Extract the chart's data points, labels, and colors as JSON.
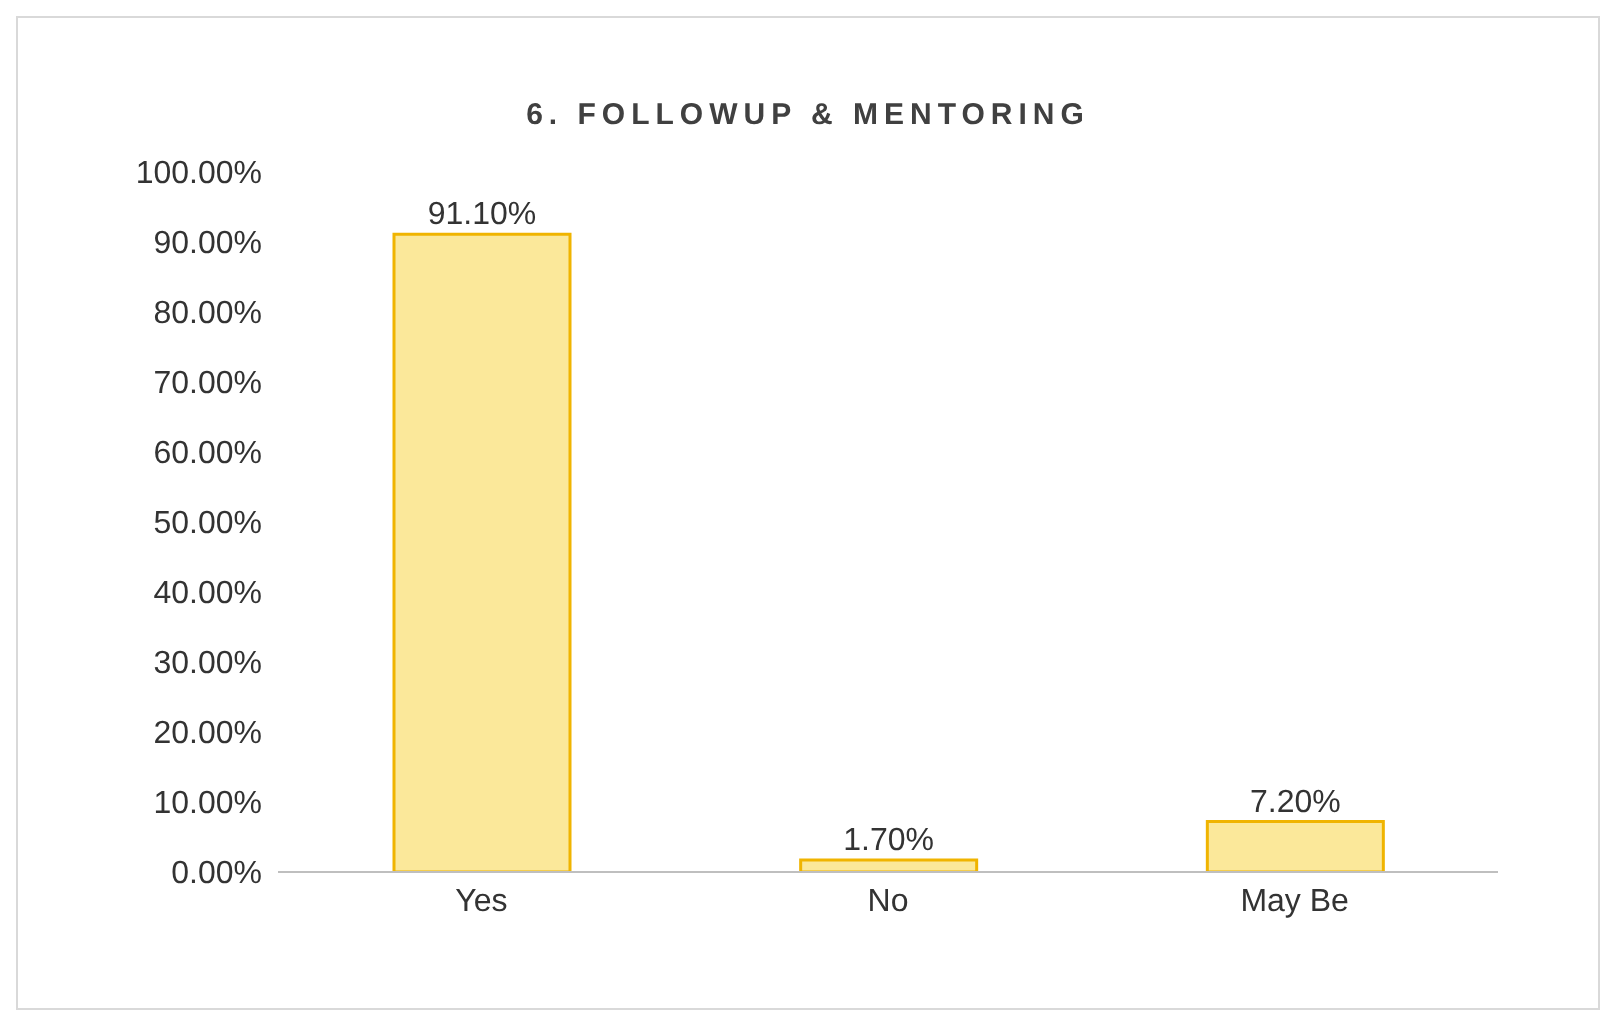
{
  "chart_data": {
    "type": "bar",
    "title": "6. FOLLOWUP & MENTORING",
    "categories": [
      "Yes",
      "No",
      "May Be"
    ],
    "values": [
      91.1,
      1.7,
      7.2
    ],
    "value_labels": [
      "91.10%",
      "1.70%",
      "7.20%"
    ],
    "color": "#fbe89a",
    "ylim": [
      0,
      100
    ],
    "yticks": [
      {
        "value": 0,
        "label": "0.00%"
      },
      {
        "value": 10,
        "label": "10.00%"
      },
      {
        "value": 20,
        "label": "20.00%"
      },
      {
        "value": 30,
        "label": "30.00%"
      },
      {
        "value": 40,
        "label": "40.00%"
      },
      {
        "value": 50,
        "label": "50.00%"
      },
      {
        "value": 60,
        "label": "60.00%"
      },
      {
        "value": 70,
        "label": "70.00%"
      },
      {
        "value": 80,
        "label": "80.00%"
      },
      {
        "value": 90,
        "label": "90.00%"
      },
      {
        "value": 100,
        "label": "100.00%"
      }
    ],
    "grid": false
  }
}
